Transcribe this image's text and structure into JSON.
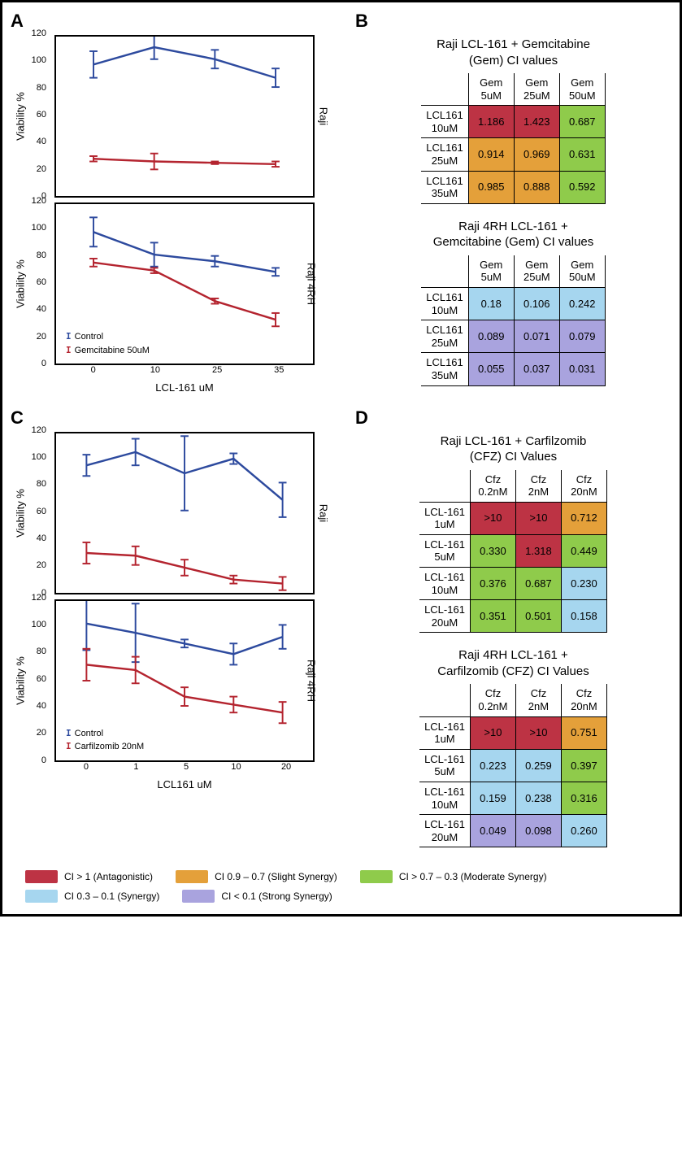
{
  "colors": {
    "control": "#2d4a9e",
    "treated": "#b4242f",
    "antagonistic": "#bd3344",
    "slight": "#e4a03a",
    "moderate": "#8fcb4b",
    "synergy": "#a6d6ef",
    "strong": "#a9a3de"
  },
  "panels": {
    "A": {
      "label": "A",
      "y_label": "Viability %",
      "x_label": "LCL-161 uM",
      "y_lim": [
        0,
        120
      ],
      "y_step": 20,
      "x_ticks": [
        0,
        10,
        25,
        35
      ],
      "charts": [
        {
          "side_label": "Raji",
          "series": [
            {
              "name": "Control",
              "color_key": "control",
              "y": [
                99,
                112,
                103,
                89
              ],
              "err": [
                10,
                9,
                7,
                7
              ]
            },
            {
              "name": "Gemcitabine 50uM",
              "color_key": "treated",
              "y": [
                28,
                26,
                25,
                24
              ],
              "err": [
                2,
                6,
                1,
                2
              ]
            }
          ]
        },
        {
          "side_label": "Raji 4RH",
          "legend_pos": "bottom-left",
          "series": [
            {
              "name": "Control",
              "color_key": "control",
              "y": [
                99,
                82,
                77,
                69
              ],
              "err": [
                11,
                9,
                4,
                3
              ]
            },
            {
              "name": "Gemcitabine 50uM",
              "color_key": "treated",
              "y": [
                76,
                70,
                47,
                33
              ],
              "err": [
                3,
                2,
                2,
                5
              ]
            }
          ]
        }
      ]
    },
    "C": {
      "label": "C",
      "y_label": "Viability %",
      "x_label": "LCL161 uM",
      "y_lim": [
        0,
        120
      ],
      "y_step": 20,
      "x_ticks": [
        0,
        1,
        5,
        10,
        20
      ],
      "charts": [
        {
          "side_label": "Raji",
          "series": [
            {
              "name": "Control",
              "color_key": "control",
              "y": [
                96,
                106,
                90,
                101,
                70
              ],
              "err": [
                8,
                10,
                28,
                4,
                13
              ]
            },
            {
              "name": "Carfilzomib 20nM",
              "color_key": "treated",
              "y": [
                30,
                28,
                19,
                10,
                7
              ],
              "err": [
                8,
                7,
                6,
                3,
                5
              ]
            }
          ]
        },
        {
          "side_label": "Raji 4RH",
          "legend_pos": "bottom-left",
          "series": [
            {
              "name": "Control",
              "color_key": "control",
              "y": [
                103,
                96,
                88,
                80,
                93
              ],
              "err": [
                20,
                22,
                3,
                8,
                9
              ]
            },
            {
              "name": "Carfilzomib 20nM",
              "color_key": "treated",
              "y": [
                72,
                68,
                48,
                42,
                36
              ],
              "err": [
                12,
                10,
                7,
                6,
                8
              ]
            }
          ]
        }
      ]
    }
  },
  "tables": {
    "B1": {
      "title": "Raji LCL-161 + Gemcitabine (Gem) CI values",
      "col_headers": [
        "Gem 5uM",
        "Gem 25uM",
        "Gem 50uM"
      ],
      "row_headers": [
        "LCL161 10uM",
        "LCL161 25uM",
        "LCL161 35uM"
      ],
      "cells": [
        [
          {
            "v": "1.186",
            "c": "antagonistic"
          },
          {
            "v": "1.423",
            "c": "antagonistic"
          },
          {
            "v": "0.687",
            "c": "moderate"
          }
        ],
        [
          {
            "v": "0.914",
            "c": "slight"
          },
          {
            "v": "0.969",
            "c": "slight"
          },
          {
            "v": "0.631",
            "c": "moderate"
          }
        ],
        [
          {
            "v": "0.985",
            "c": "slight"
          },
          {
            "v": "0.888",
            "c": "slight"
          },
          {
            "v": "0.592",
            "c": "moderate"
          }
        ]
      ]
    },
    "B2": {
      "title": "Raji 4RH LCL-161 + Gemcitabine (Gem) CI values",
      "col_headers": [
        "Gem 5uM",
        "Gem 25uM",
        "Gem 50uM"
      ],
      "row_headers": [
        "LCL161 10uM",
        "LCL161 25uM",
        "LCL161 35uM"
      ],
      "cells": [
        [
          {
            "v": "0.18",
            "c": "synergy"
          },
          {
            "v": "0.106",
            "c": "synergy"
          },
          {
            "v": "0.242",
            "c": "synergy"
          }
        ],
        [
          {
            "v": "0.089",
            "c": "strong"
          },
          {
            "v": "0.071",
            "c": "strong"
          },
          {
            "v": "0.079",
            "c": "strong"
          }
        ],
        [
          {
            "v": "0.055",
            "c": "strong"
          },
          {
            "v": "0.037",
            "c": "strong"
          },
          {
            "v": "0.031",
            "c": "strong"
          }
        ]
      ]
    },
    "D1": {
      "title": "Raji LCL-161 + Carfilzomib (CFZ) CI Values",
      "col_headers": [
        "Cfz 0.2nM",
        "Cfz 2nM",
        "Cfz 20nM"
      ],
      "row_headers": [
        "LCL-161 1uM",
        "LCL-161 5uM",
        "LCL-161 10uM",
        "LCL-161 20uM"
      ],
      "cells": [
        [
          {
            "v": ">10",
            "c": "antagonistic"
          },
          {
            "v": ">10",
            "c": "antagonistic"
          },
          {
            "v": "0.712",
            "c": "slight"
          }
        ],
        [
          {
            "v": "0.330",
            "c": "moderate"
          },
          {
            "v": "1.318",
            "c": "antagonistic"
          },
          {
            "v": "0.449",
            "c": "moderate"
          }
        ],
        [
          {
            "v": "0.376",
            "c": "moderate"
          },
          {
            "v": "0.687",
            "c": "moderate"
          },
          {
            "v": "0.230",
            "c": "synergy"
          }
        ],
        [
          {
            "v": "0.351",
            "c": "moderate"
          },
          {
            "v": "0.501",
            "c": "moderate"
          },
          {
            "v": "0.158",
            "c": "synergy"
          }
        ]
      ]
    },
    "D2": {
      "title": "Raji 4RH LCL-161 + Carfilzomib (CFZ) CI Values",
      "col_headers": [
        "Cfz 0.2nM",
        "Cfz 2nM",
        "Cfz 20nM"
      ],
      "row_headers": [
        "LCL-161 1uM",
        "LCL-161 5uM",
        "LCL-161 10uM",
        "LCL-161 20uM"
      ],
      "cells": [
        [
          {
            "v": ">10",
            "c": "antagonistic"
          },
          {
            "v": ">10",
            "c": "antagonistic"
          },
          {
            "v": "0.751",
            "c": "slight"
          }
        ],
        [
          {
            "v": "0.223",
            "c": "synergy"
          },
          {
            "v": "0.259",
            "c": "synergy"
          },
          {
            "v": "0.397",
            "c": "moderate"
          }
        ],
        [
          {
            "v": "0.159",
            "c": "synergy"
          },
          {
            "v": "0.238",
            "c": "synergy"
          },
          {
            "v": "0.316",
            "c": "moderate"
          }
        ],
        [
          {
            "v": "0.049",
            "c": "strong"
          },
          {
            "v": "0.098",
            "c": "strong"
          },
          {
            "v": "0.260",
            "c": "synergy"
          }
        ]
      ]
    }
  },
  "ci_legend": [
    {
      "c": "antagonistic",
      "label": "CI > 1 (Antagonistic)"
    },
    {
      "c": "slight",
      "label": "CI 0.9 – 0.7 (Slight Synergy)"
    },
    {
      "c": "moderate",
      "label": "CI > 0.7 – 0.3 (Moderate Synergy)"
    },
    {
      "c": "synergy",
      "label": "CI 0.3 – 0.1 (Synergy)"
    },
    {
      "c": "strong",
      "label": "CI < 0.1 (Strong Synergy)"
    }
  ],
  "panel_labels": {
    "A": "A",
    "B": "B",
    "C": "C",
    "D": "D"
  }
}
